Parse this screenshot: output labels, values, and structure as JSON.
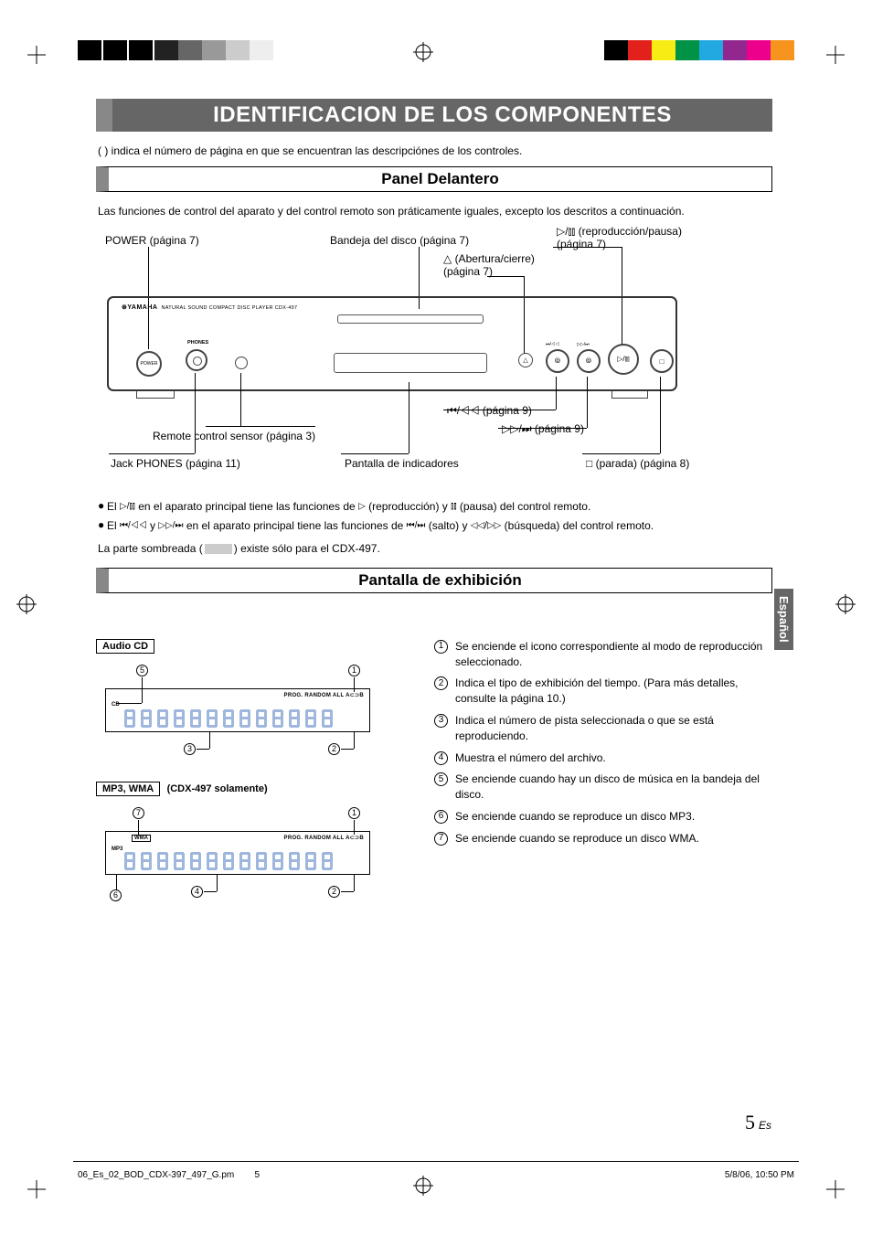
{
  "printermarks": {
    "colorbar_right": [
      "#000000",
      "#e2211c",
      "#f7ec13",
      "#009245",
      "#23a9e1",
      "#92278f",
      "#ec008c",
      "#f7941d"
    ]
  },
  "title": "IDENTIFICACION DE LOS COMPONENTES",
  "intro": "(    ) indica el número de página en que se encuentran las descripciónes de los controles.",
  "section1": {
    "heading": "Panel Delantero",
    "desc": "Las funciones de control del aparato y del control remoto son práticamente iguales, excepto los descritos a continuación.",
    "labels": {
      "power": "POWER (página 7)",
      "tray": "Bandeja del disco (página 7)",
      "playpause_sym": "▷/⫾⫾ (reproducción/pausa)",
      "playpause_pg": "(página 7)",
      "open_sym": "△ (Abertura/cierre)",
      "open_pg": "(página 7)",
      "skip_back": "⏮/◁◁ (página 9)",
      "skip_fwd": "▷▷/⏭ (página 9)",
      "remote_sensor": "Remote control sensor (página 3)",
      "phones": "Jack PHONES (página 11)",
      "display": "Pantalla de indicadores",
      "stop": "□ (parada) (página 8)"
    },
    "device": {
      "brand": "⊛YAMAHA",
      "subtitle": "NATURAL SOUND COMPACT DISC PLAYER   CDX-497",
      "phones_label": "PHONES",
      "power_label": "POWER",
      "prev_label": "⏮/◁◁",
      "next_label": "▷▷/⏭"
    },
    "bullet1_pre": "El ",
    "bullet1_sym1": "▷/⫾⫾",
    "bullet1_mid": " en el aparato principal tiene las funciones de ",
    "bullet1_sym2": "▷",
    "bullet1_mid2": " (reproducción) y ",
    "bullet1_sym3": "⫾⫾",
    "bullet1_end": " (pausa) del control remoto.",
    "bullet2_pre": "El ",
    "bullet2_sym1": "⏮/◁◁",
    "bullet2_mid": " y ",
    "bullet2_sym2": "▷▷/⏭",
    "bullet2_mid2": " en el aparato principal tiene las funciones de ",
    "bullet2_sym3": "⏮/⏭",
    "bullet2_mid3": " (salto) y ",
    "bullet2_sym4": "◁◁/▷▷",
    "bullet2_end": " (búsqueda) del control remoto.",
    "shade_pre": "La parte sombreada (",
    "shade_post": ") existe sólo para el CDX-497."
  },
  "section2": {
    "heading": "Pantalla de exhibición",
    "chip1": "Audio CD",
    "chip2": "MP3, WMA",
    "chip2_suffix": "(CDX-497 solamente)",
    "disp_toprow": "PROG. RANDOM ALL A⊂⊃B",
    "disp_cd": "CD",
    "disp_wma": "WMA",
    "disp_mp3": "MP3",
    "legend": [
      "Se enciende el icono correspondiente al modo de reproducción seleccionado.",
      "Indica el tipo de exhibición del tiempo.  (Para más detalles, consulte la página 10.)",
      "Indica el número de pista seleccionada o que se está reproduciendo.",
      "Muestra el número del archivo.",
      "Se enciende cuando hay un disco de música en la bandeja del disco.",
      "Se enciende cuando se reproduce un disco MP3.",
      "Se enciende cuando se reproduce un disco WMA."
    ]
  },
  "side_tab": "Español",
  "page_number": "5",
  "page_suffix": "Es",
  "footer": {
    "file": "06_Es_02_BOD_CDX-397_497_G.pm",
    "page": "5",
    "date": "5/8/06, 10:50 PM"
  }
}
